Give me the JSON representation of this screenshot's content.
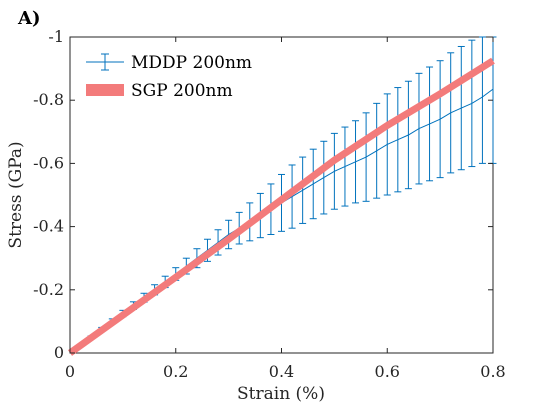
{
  "panel_label": "A)",
  "chart_data": {
    "type": "line",
    "xlabel": "Strain (%)",
    "ylabel": "Stress (GPa)",
    "xlim": [
      0,
      0.8
    ],
    "ylim": [
      0,
      -1
    ],
    "y_direction": "reversed",
    "grid": false,
    "legend_position": "top-left",
    "x_ticks": [
      0,
      0.2,
      0.4,
      0.6,
      0.8
    ],
    "x_tick_labels": [
      "0",
      "0.2",
      "0.4",
      "0.6",
      "0.8"
    ],
    "y_ticks": [
      0,
      -0.2,
      -0.4,
      -0.6,
      -0.8,
      -1
    ],
    "y_tick_labels": [
      "0",
      "-0.2",
      "-0.4",
      "-0.6",
      "-0.8",
      "-1"
    ],
    "series": [
      {
        "name": "MDDP 200nm",
        "style": "line-with-errorbars",
        "color": "#0072BD",
        "x": [
          0,
          0.02,
          0.04,
          0.06,
          0.08,
          0.1,
          0.12,
          0.14,
          0.16,
          0.18,
          0.2,
          0.22,
          0.24,
          0.26,
          0.28,
          0.3,
          0.32,
          0.34,
          0.36,
          0.38,
          0.4,
          0.42,
          0.44,
          0.46,
          0.48,
          0.5,
          0.52,
          0.54,
          0.56,
          0.58,
          0.6,
          0.62,
          0.64,
          0.66,
          0.68,
          0.7,
          0.72,
          0.74,
          0.76,
          0.78,
          0.8
        ],
        "y": [
          0,
          -0.025,
          -0.05,
          -0.075,
          -0.1,
          -0.125,
          -0.15,
          -0.175,
          -0.2,
          -0.225,
          -0.25,
          -0.275,
          -0.3,
          -0.325,
          -0.35,
          -0.375,
          -0.395,
          -0.415,
          -0.435,
          -0.455,
          -0.475,
          -0.495,
          -0.515,
          -0.535,
          -0.555,
          -0.575,
          -0.59,
          -0.605,
          -0.62,
          -0.64,
          -0.66,
          -0.675,
          -0.69,
          -0.71,
          -0.725,
          -0.74,
          -0.76,
          -0.775,
          -0.79,
          -0.81,
          -0.835
        ],
        "error": [
          0,
          0.002,
          0.004,
          0.006,
          0.008,
          0.01,
          0.012,
          0.014,
          0.016,
          0.018,
          0.02,
          0.025,
          0.03,
          0.035,
          0.04,
          0.045,
          0.05,
          0.06,
          0.07,
          0.08,
          0.09,
          0.1,
          0.105,
          0.11,
          0.115,
          0.12,
          0.125,
          0.13,
          0.14,
          0.15,
          0.16,
          0.165,
          0.17,
          0.175,
          0.18,
          0.185,
          0.19,
          0.195,
          0.2,
          0.21,
          0.235
        ]
      },
      {
        "name": "SGP 200nm",
        "style": "thick-line",
        "color": "#F37B7B",
        "x": [
          0,
          0.1,
          0.2,
          0.3,
          0.4,
          0.5,
          0.6,
          0.7,
          0.8
        ],
        "y": [
          0,
          -0.12,
          -0.24,
          -0.36,
          -0.485,
          -0.61,
          -0.72,
          -0.82,
          -0.925
        ]
      }
    ]
  }
}
